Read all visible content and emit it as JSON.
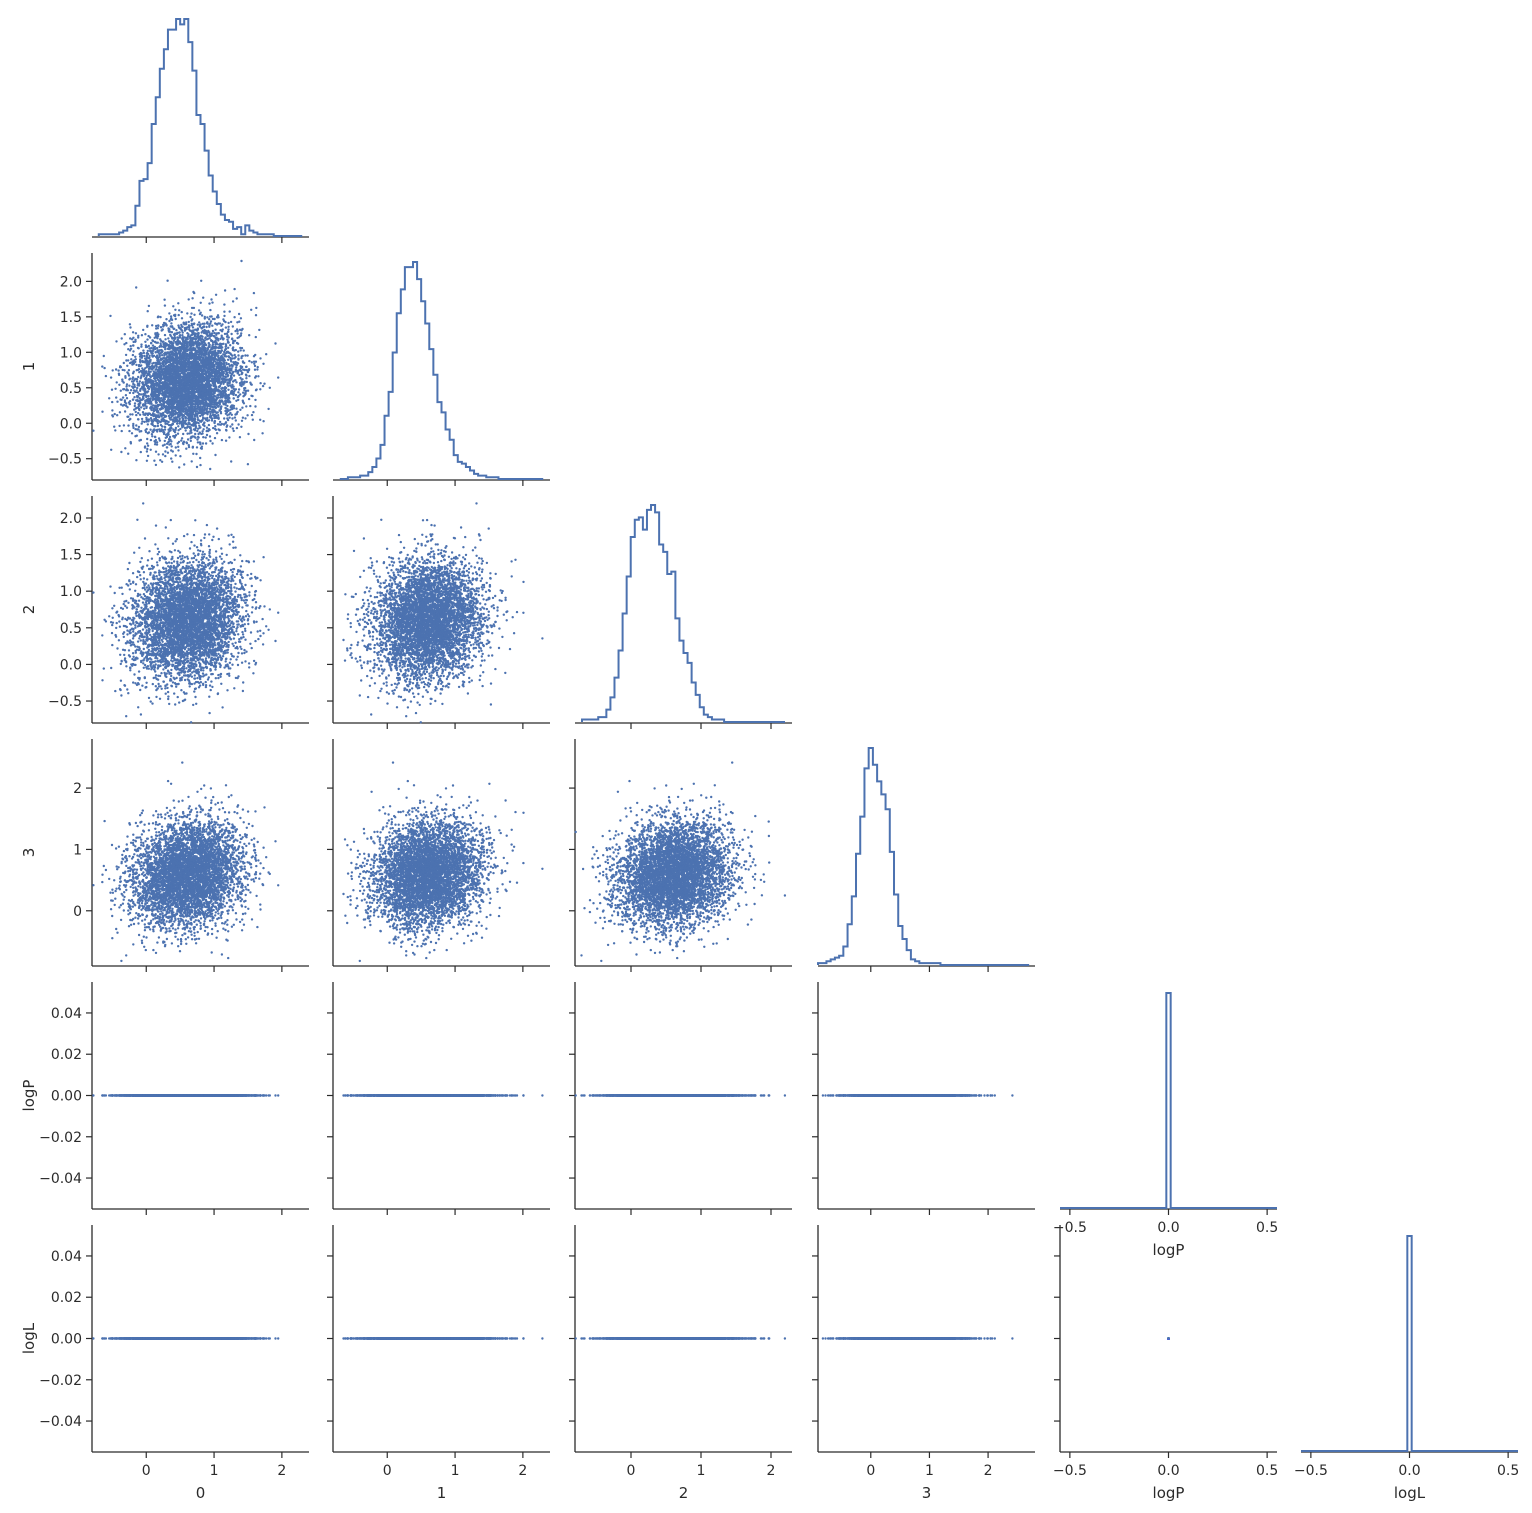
{
  "colors": {
    "series": "#4c72b0",
    "axis": "#2b2b2b",
    "background": "#ffffff"
  },
  "chart_data": {
    "type": "scatter",
    "kind": "corner pair plot",
    "layout": "lower triangle, histograms on diagonal",
    "grid": false,
    "variables": [
      {
        "name": "0",
        "xticks": [
          0,
          1,
          2
        ],
        "lim": [
          -0.8,
          2.4
        ]
      },
      {
        "name": "1",
        "xticks": [
          0,
          1,
          2
        ],
        "yticks": [
          -0.5,
          0.0,
          0.5,
          1.0,
          1.5,
          2.0
        ],
        "yticklabels": [
          "−0.5",
          "0.0",
          "0.5",
          "1.0",
          "1.5",
          "2.0"
        ],
        "lim": [
          -0.8,
          2.4
        ]
      },
      {
        "name": "2",
        "xticks": [
          0,
          1,
          2
        ],
        "yticks": [
          -0.5,
          0.0,
          0.5,
          1.0,
          1.5,
          2.0
        ],
        "yticklabels": [
          "−0.5",
          "0.0",
          "0.5",
          "1.0",
          "1.5",
          "2.0"
        ],
        "lim": [
          -0.8,
          2.3
        ]
      },
      {
        "name": "3",
        "xticks": [
          0,
          1,
          2
        ],
        "yticks": [
          0,
          1,
          2
        ],
        "yticklabels": [
          "0",
          "1",
          "2"
        ],
        "lim": [
          -0.9,
          2.8
        ]
      },
      {
        "name": "logP",
        "xticks": [
          -0.5,
          0.0,
          0.5
        ],
        "xticklabels": [
          "−0.5",
          "0.0",
          "0.5"
        ],
        "yticks": [
          -0.04,
          -0.02,
          0.0,
          0.02,
          0.04
        ],
        "yticklabels": [
          "−0.04",
          "−0.02",
          "0.00",
          "0.02",
          "0.04"
        ],
        "lim": [
          -0.055,
          0.055
        ],
        "hlim": [
          -0.55,
          0.55
        ]
      },
      {
        "name": "logL",
        "xticks": [
          -0.5,
          0.0,
          0.5
        ],
        "xticklabels": [
          "−0.5",
          "0.0",
          "0.5"
        ],
        "yticks": [
          -0.04,
          -0.02,
          0.0,
          0.02,
          0.04
        ],
        "yticklabels": [
          "−0.04",
          "−0.02",
          "0.00",
          "0.02",
          "0.04"
        ],
        "lim": [
          -0.055,
          0.055
        ],
        "hlim": [
          -0.55,
          0.55
        ]
      }
    ],
    "marginals": [
      {
        "variable": "0",
        "range": [
          -0.7,
          2.3
        ],
        "bins": 50,
        "counts": [
          1,
          1,
          1,
          1,
          1,
          2,
          3,
          5,
          6,
          17,
          31,
          32,
          41,
          63,
          78,
          94,
          105,
          116,
          116,
          122,
          119,
          122,
          109,
          93,
          68,
          63,
          48,
          34,
          25,
          18,
          12,
          9,
          8,
          4,
          5,
          1,
          6,
          3,
          2,
          1,
          1,
          1,
          1,
          0,
          0,
          0,
          0,
          0,
          0,
          0
        ]
      },
      {
        "variable": "1",
        "range": [
          -0.7,
          2.3
        ],
        "bins": 50,
        "counts": [
          0,
          0,
          1,
          1,
          1,
          2,
          2,
          4,
          7,
          12,
          20,
          37,
          51,
          74,
          97,
          111,
          124,
          124,
          127,
          117,
          104,
          91,
          76,
          61,
          45,
          39,
          29,
          23,
          14,
          10,
          9,
          7,
          5,
          3,
          2,
          2,
          1,
          1,
          1,
          0,
          0,
          0,
          0,
          0,
          0,
          0,
          0,
          0,
          0,
          0
        ]
      },
      {
        "variable": "2",
        "range": [
          -0.7,
          2.2
        ],
        "bins": 50,
        "counts": [
          1,
          1,
          1,
          1,
          2,
          2,
          5,
          10,
          18,
          29,
          44,
          59,
          75,
          82,
          83,
          78,
          86,
          88,
          85,
          72,
          69,
          60,
          61,
          42,
          33,
          28,
          24,
          16,
          11,
          6,
          3,
          2,
          1,
          1,
          1,
          0,
          0,
          0,
          0,
          0,
          0,
          0,
          0,
          0,
          0,
          0,
          0,
          0,
          0,
          0
        ]
      },
      {
        "variable": "3",
        "range": [
          -0.9,
          2.7
        ],
        "bins": 50,
        "counts": [
          1,
          1,
          2,
          3,
          4,
          5,
          10,
          22,
          37,
          60,
          80,
          106,
          117,
          108,
          99,
          92,
          84,
          61,
          38,
          21,
          14,
          8,
          3,
          2,
          1,
          1,
          1,
          1,
          1,
          0,
          0,
          0,
          0,
          0,
          0,
          0,
          0,
          0,
          0,
          0,
          0,
          0,
          0,
          0,
          0,
          0,
          0,
          0,
          0,
          0
        ]
      },
      {
        "variable": "logP",
        "note": "single spike at 0.00"
      },
      {
        "variable": "logL",
        "note": "single spike at 0.00"
      }
    ],
    "sample": {
      "n_points": 5000,
      "center": 0.6,
      "spread": 0.4,
      "logP_values": 0.0,
      "logL_values": 0.0
    }
  }
}
